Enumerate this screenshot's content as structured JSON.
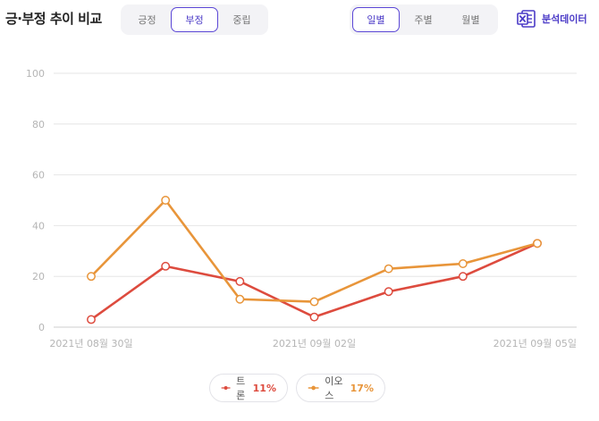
{
  "header": {
    "title": "긍·부정 추이 비교",
    "sentiment_tabs": [
      {
        "label": "긍정",
        "active": false
      },
      {
        "label": "부정",
        "active": true
      },
      {
        "label": "중립",
        "active": false
      }
    ],
    "period_tabs": [
      {
        "label": "일별",
        "active": true
      },
      {
        "label": "주별",
        "active": false
      },
      {
        "label": "월별",
        "active": false
      }
    ],
    "export_label": "분석데이터",
    "export_icon": "excel-file-icon"
  },
  "chart_data": {
    "type": "line",
    "title": "",
    "xlabel": "",
    "ylabel": "",
    "x": [
      "2021-08-30",
      "2021-08-31",
      "2021-09-01",
      "2021-09-02",
      "2021-09-03",
      "2021-09-04",
      "2021-09-05"
    ],
    "x_tick_labels": [
      {
        "index": 0,
        "label": "2021년 08월 30일"
      },
      {
        "index": 3,
        "label": "2021년 09월 02일"
      },
      {
        "index": 6,
        "label": "2021년 09월 05일"
      }
    ],
    "y_ticks": [
      0,
      20,
      40,
      60,
      80,
      100
    ],
    "ylim": [
      0,
      100
    ],
    "grid": true,
    "legend_position": "bottom-center",
    "series": [
      {
        "name": "트론",
        "percent_label": "11%",
        "color": "#dd4b3e",
        "values": [
          3,
          24,
          18,
          4,
          14,
          20,
          33
        ]
      },
      {
        "name": "이오스",
        "percent_label": "17%",
        "color": "#e8953a",
        "values": [
          20,
          50,
          11,
          10,
          23,
          25,
          33
        ]
      }
    ]
  }
}
